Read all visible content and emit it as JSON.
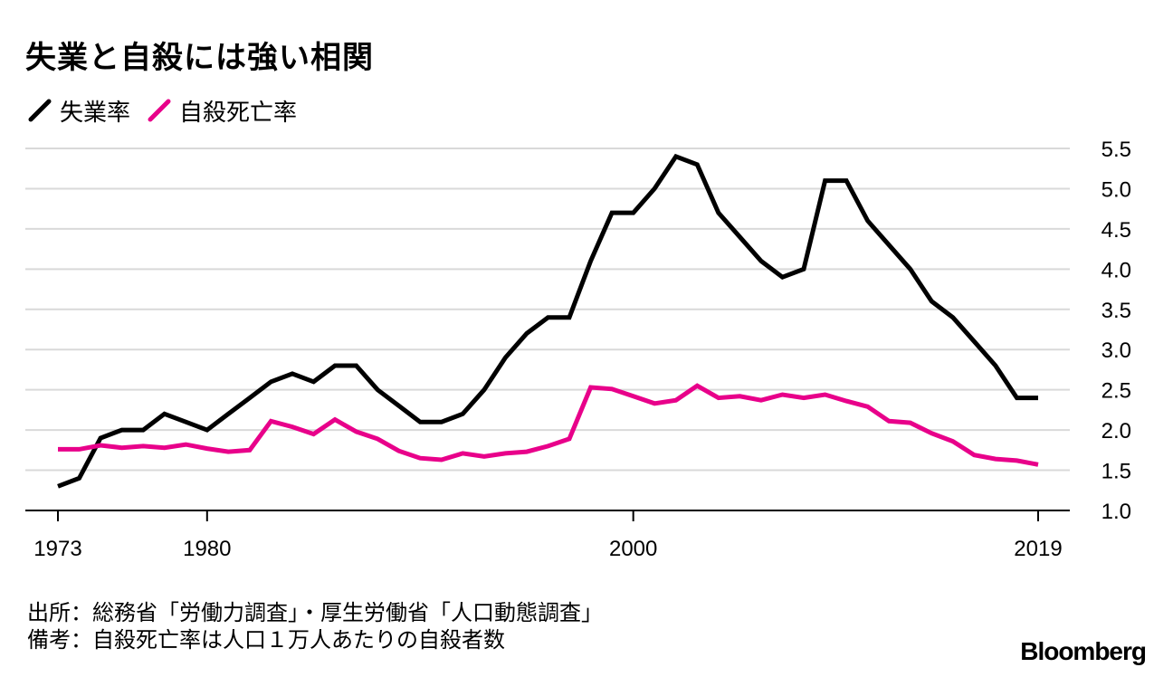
{
  "chart_data": {
    "type": "line",
    "title": "失業と自殺には強い相関",
    "x": [
      1973,
      1974,
      1975,
      1976,
      1977,
      1978,
      1979,
      1980,
      1981,
      1982,
      1983,
      1984,
      1985,
      1986,
      1987,
      1988,
      1989,
      1990,
      1991,
      1992,
      1993,
      1994,
      1995,
      1996,
      1997,
      1998,
      1999,
      2000,
      2001,
      2002,
      2003,
      2004,
      2005,
      2006,
      2007,
      2008,
      2009,
      2010,
      2011,
      2012,
      2013,
      2014,
      2015,
      2016,
      2017,
      2018,
      2019
    ],
    "series": [
      {
        "name": "失業率",
        "color": "#000000",
        "values": [
          1.3,
          1.4,
          1.9,
          2.0,
          2.0,
          2.2,
          2.1,
          2.0,
          2.2,
          2.4,
          2.6,
          2.7,
          2.6,
          2.8,
          2.8,
          2.5,
          2.3,
          2.1,
          2.1,
          2.2,
          2.5,
          2.9,
          3.2,
          3.4,
          3.4,
          4.1,
          4.7,
          4.7,
          5.0,
          5.4,
          5.3,
          4.7,
          4.4,
          4.1,
          3.9,
          4.0,
          5.1,
          5.1,
          4.6,
          4.3,
          4.0,
          3.6,
          3.4,
          3.1,
          2.8,
          2.4,
          2.4
        ]
      },
      {
        "name": "自殺死亡率",
        "color": "#e8008a",
        "values": [
          1.76,
          1.76,
          1.81,
          1.78,
          1.8,
          1.78,
          1.82,
          1.77,
          1.73,
          1.75,
          2.11,
          2.04,
          1.95,
          2.13,
          1.98,
          1.89,
          1.74,
          1.65,
          1.63,
          1.71,
          1.67,
          1.71,
          1.73,
          1.8,
          1.89,
          2.53,
          2.51,
          2.42,
          2.33,
          2.37,
          2.55,
          2.4,
          2.42,
          2.37,
          2.44,
          2.4,
          2.44,
          2.36,
          2.29,
          2.11,
          2.09,
          1.96,
          1.86,
          1.69,
          1.64,
          1.62,
          1.57
        ]
      }
    ],
    "ylim": [
      1.0,
      5.5
    ],
    "yticks": [
      "5.5",
      "5.0",
      "4.5",
      "4.0",
      "3.5",
      "3.0",
      "2.5",
      "2.0",
      "1.5",
      "1.0"
    ],
    "xticks": [
      1973,
      1980,
      2000,
      2019
    ],
    "xlabel": "",
    "ylabel": ""
  },
  "footnotes": {
    "source": "出所：総務省「労働力調査」・厚生労働省「人口動態調査」",
    "note": "備考：自殺死亡率は人口１万人あたりの自殺者数"
  },
  "brand": "Bloomberg"
}
